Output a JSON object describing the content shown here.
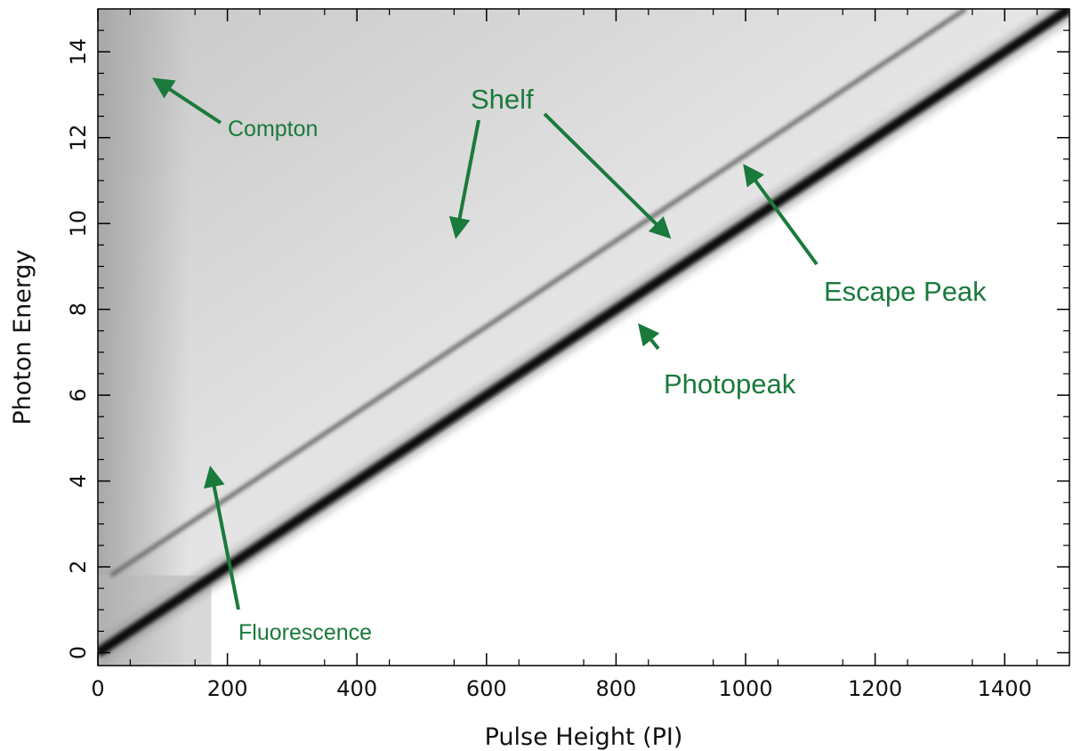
{
  "chart_data": {
    "type": "heatmap",
    "title": "",
    "xlabel": "Pulse Height (PI)",
    "ylabel": "Photon Energy",
    "xlim": [
      0,
      1500
    ],
    "ylim": [
      -0.3,
      15
    ],
    "x_ticks": [
      0,
      200,
      400,
      600,
      800,
      1000,
      1200,
      1400
    ],
    "y_ticks": [
      0,
      2,
      4,
      6,
      8,
      10,
      12,
      14
    ],
    "colormap": "inverted grayscale",
    "features": [
      {
        "name": "Photopeak",
        "x": [
          0,
          1500
        ],
        "y": [
          0,
          15
        ]
      },
      {
        "name": "Escape Peak",
        "x": [
          20,
          1340
        ],
        "y": [
          1.8,
          15
        ]
      },
      {
        "name": "Fluorescence",
        "x": [
          175,
          175
        ],
        "y": [
          1.8,
          15
        ]
      }
    ],
    "annotations": [
      {
        "text": "Compton",
        "arrow_to": [
          90,
          13.5
        ]
      },
      {
        "text": "Shelf",
        "arrow_to": [
          [
            560,
            9.8
          ],
          [
            885,
            9.8
          ]
        ]
      },
      {
        "text": "Escape Peak",
        "arrow_to": [
          990,
          11.4
        ]
      },
      {
        "text": "Photopeak",
        "arrow_to": [
          830,
          7.9
        ]
      },
      {
        "text": "Fluorescence",
        "arrow_to": [
          175,
          4.6
        ]
      }
    ],
    "colors": {
      "annotation": "#1a7a3c"
    }
  }
}
